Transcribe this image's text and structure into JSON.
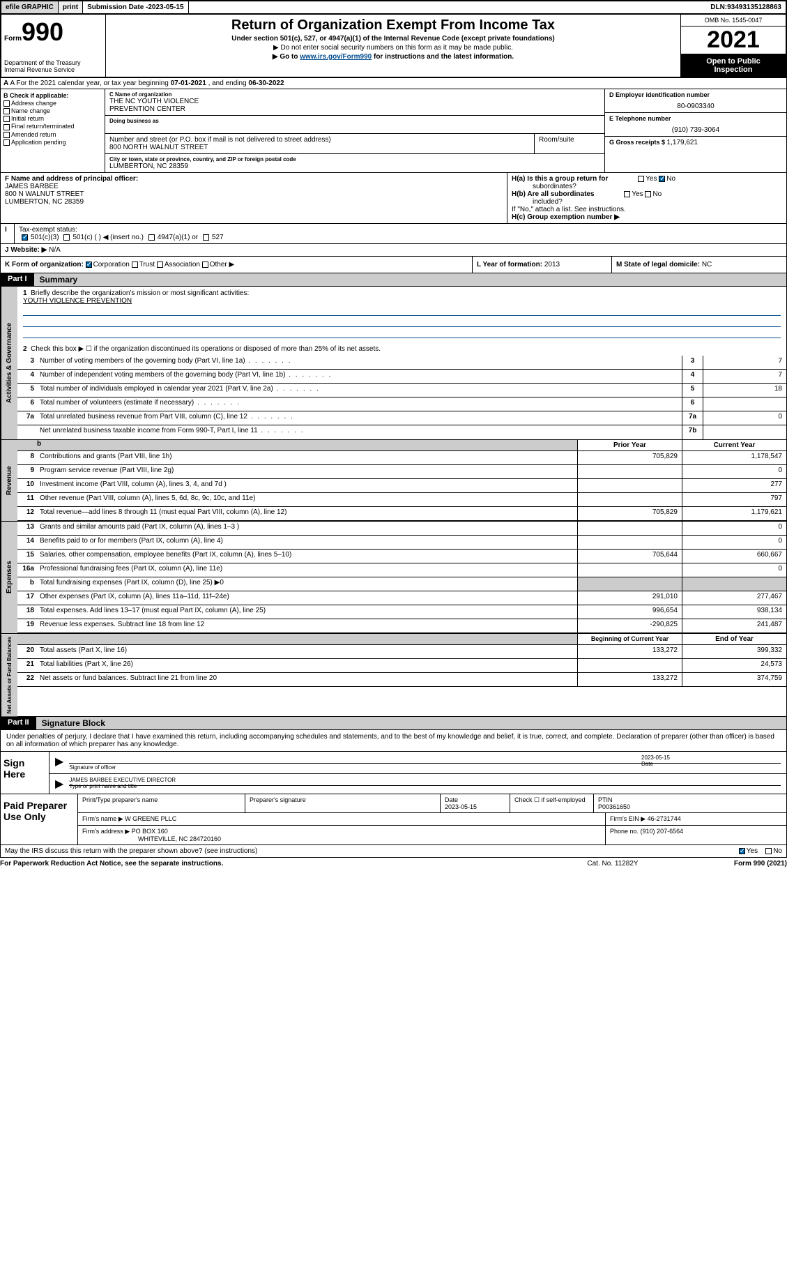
{
  "topbar": {
    "efile": "efile GRAPHIC",
    "print": "print",
    "submission_label": "Submission Date - ",
    "submission_date": "2023-05-15",
    "dln_label": "DLN: ",
    "dln": "93493135128863"
  },
  "header": {
    "form_word": "Form",
    "form_num": "990",
    "dept": "Department of the Treasury",
    "irs": "Internal Revenue Service",
    "title": "Return of Organization Exempt From Income Tax",
    "sub1": "Under section 501(c), 527, or 4947(a)(1) of the Internal Revenue Code (except private foundations)",
    "sub2_prefix": "▶ Do not enter social security numbers on this form as it may be made public.",
    "sub3_prefix": "▶ Go to ",
    "sub3_link": "www.irs.gov/Form990",
    "sub3_suffix": " for instructions and the latest information.",
    "omb": "OMB No. 1545-0047",
    "year": "2021",
    "open1": "Open to Public",
    "open2": "Inspection"
  },
  "row_a": {
    "prefix": "A For the 2021 calendar year, or tax year beginning ",
    "begin": "07-01-2021",
    "mid": " , and ending ",
    "end": "06-30-2022"
  },
  "col_b": {
    "hdr": "B Check if applicable:",
    "opts": [
      "Address change",
      "Name change",
      "Initial return",
      "Final return/terminated",
      "Amended return",
      "Application pending"
    ]
  },
  "col_c": {
    "name_lbl": "C Name of organization",
    "name": "THE NC YOUTH VIOLENCE",
    "name2": "PREVENTION CENTER",
    "dba_lbl": "Doing business as",
    "street_lbl": "Number and street (or P.O. box if mail is not delivered to street address)",
    "street": "800 NORTH WALNUT STREET",
    "room_lbl": "Room/suite",
    "city_lbl": "City or town, state or province, country, and ZIP or foreign postal code",
    "city": "LUMBERTON, NC  28359"
  },
  "col_de": {
    "d_lbl": "D Employer identification number",
    "ein": "80-0903340",
    "e_lbl": "E Telephone number",
    "phone": "(910) 739-3064",
    "g_lbl": "G Gross receipts $ ",
    "gross": "1,179,621"
  },
  "row_f": {
    "f_lbl": "F Name and address of principal officer:",
    "name": "JAMES BARBEE",
    "addr1": "800 N WALNUT STREET",
    "addr2": "LUMBERTON, NC  28359",
    "ha_lbl": "H(a)  Is this a group return for",
    "ha_sub": "subordinates?",
    "hb_lbl": "H(b)  Are all subordinates",
    "hb_sub": "included?",
    "hb_note": "If \"No,\" attach a list. See instructions.",
    "hc_lbl": "H(c)  Group exemption number ▶",
    "yes": "Yes",
    "no": "No"
  },
  "row_i": {
    "lbl": "Tax-exempt status:",
    "opt1": "501(c)(3)",
    "opt2": "501(c) (   ) ◀ (insert no.)",
    "opt3": "4947(a)(1) or",
    "opt4": "527"
  },
  "row_j": {
    "lbl": "J   Website: ▶",
    "val": "N/A"
  },
  "row_k": {
    "k_lbl": "K Form of organization:",
    "k_opts": [
      "Corporation",
      "Trust",
      "Association",
      "Other ▶"
    ],
    "l_lbl": "L Year of formation: ",
    "l_val": "2013",
    "m_lbl": "M State of legal domicile: ",
    "m_val": "NC"
  },
  "part1": {
    "hdr": "Part I",
    "title": "Summary",
    "tab1": "Activities & Governance",
    "tab2": "Revenue",
    "tab3": "Expenses",
    "tab4": "Net Assets or Fund Balances",
    "q1": "Briefly describe the organization's mission or most significant activities:",
    "mission": "YOUTH VIOLENCE PREVENTION",
    "q2": "Check this box ▶ ☐  if the organization discontinued its operations or disposed of more than 25% of its net assets.",
    "lines_gov": [
      {
        "n": "3",
        "d": "Number of voting members of the governing body (Part VI, line 1a)",
        "c": "3",
        "v": "7"
      },
      {
        "n": "4",
        "d": "Number of independent voting members of the governing body (Part VI, line 1b)",
        "c": "4",
        "v": "7"
      },
      {
        "n": "5",
        "d": "Total number of individuals employed in calendar year 2021 (Part V, line 2a)",
        "c": "5",
        "v": "18"
      },
      {
        "n": "6",
        "d": "Total number of volunteers (estimate if necessary)",
        "c": "6",
        "v": ""
      },
      {
        "n": "7a",
        "d": "Total unrelated business revenue from Part VIII, column (C), line 12",
        "c": "7a",
        "v": "0"
      },
      {
        "n": "",
        "d": "Net unrelated business taxable income from Form 990-T, Part I, line 11",
        "c": "7b",
        "v": ""
      }
    ],
    "col_prior": "Prior Year",
    "col_curr": "Current Year",
    "lines_rev": [
      {
        "n": "8",
        "d": "Contributions and grants (Part VIII, line 1h)",
        "p": "705,829",
        "c": "1,178,547"
      },
      {
        "n": "9",
        "d": "Program service revenue (Part VIII, line 2g)",
        "p": "",
        "c": "0"
      },
      {
        "n": "10",
        "d": "Investment income (Part VIII, column (A), lines 3, 4, and 7d )",
        "p": "",
        "c": "277"
      },
      {
        "n": "11",
        "d": "Other revenue (Part VIII, column (A), lines 5, 6d, 8c, 9c, 10c, and 11e)",
        "p": "",
        "c": "797"
      },
      {
        "n": "12",
        "d": "Total revenue—add lines 8 through 11 (must equal Part VIII, column (A), line 12)",
        "p": "705,829",
        "c": "1,179,621"
      }
    ],
    "lines_exp": [
      {
        "n": "13",
        "d": "Grants and similar amounts paid (Part IX, column (A), lines 1–3 )",
        "p": "",
        "c": "0"
      },
      {
        "n": "14",
        "d": "Benefits paid to or for members (Part IX, column (A), line 4)",
        "p": "",
        "c": "0"
      },
      {
        "n": "15",
        "d": "Salaries, other compensation, employee benefits (Part IX, column (A), lines 5–10)",
        "p": "705,644",
        "c": "660,667"
      },
      {
        "n": "16a",
        "d": "Professional fundraising fees (Part IX, column (A), line 11e)",
        "p": "",
        "c": "0"
      },
      {
        "n": "b",
        "d": "Total fundraising expenses (Part IX, column (D), line 25) ▶0",
        "p": "shade",
        "c": "shade"
      },
      {
        "n": "17",
        "d": "Other expenses (Part IX, column (A), lines 11a–11d, 11f–24e)",
        "p": "291,010",
        "c": "277,467"
      },
      {
        "n": "18",
        "d": "Total expenses. Add lines 13–17 (must equal Part IX, column (A), line 25)",
        "p": "996,654",
        "c": "938,134"
      },
      {
        "n": "19",
        "d": "Revenue less expenses. Subtract line 18 from line 12",
        "p": "-290,825",
        "c": "241,487"
      }
    ],
    "col_begin": "Beginning of Current Year",
    "col_end": "End of Year",
    "lines_net": [
      {
        "n": "20",
        "d": "Total assets (Part X, line 16)",
        "p": "133,272",
        "c": "399,332"
      },
      {
        "n": "21",
        "d": "Total liabilities (Part X, line 26)",
        "p": "",
        "c": "24,573"
      },
      {
        "n": "22",
        "d": "Net assets or fund balances. Subtract line 21 from line 20",
        "p": "133,272",
        "c": "374,759"
      }
    ]
  },
  "part2": {
    "hdr": "Part II",
    "title": "Signature Block",
    "penalty": "Under penalties of perjury, I declare that I have examined this return, including accompanying schedules and statements, and to the best of my knowledge and belief, it is true, correct, and complete. Declaration of preparer (other than officer) is based on all information of which preparer has any knowledge.",
    "sign_here": "Sign Here",
    "sig_officer_lbl": "Signature of officer",
    "sig_date": "2023-05-15",
    "date_lbl": "Date",
    "officer_name": "JAMES BARBEE  EXECUTIVE DIRECTOR",
    "officer_lbl": "Type or print name and title",
    "paid": "Paid Preparer Use Only",
    "pg_hdr": [
      "Print/Type preparer's name",
      "Preparer's signature",
      "Date",
      "",
      "PTIN"
    ],
    "pg_date": "2023-05-15",
    "pg_check_lbl": "Check ☐ if self-employed",
    "ptin": "P00361650",
    "firm_name_lbl": "Firm's name   ▶",
    "firm_name": "W GREENE PLLC",
    "firm_ein_lbl": "Firm's EIN ▶",
    "firm_ein": "46-2731744",
    "firm_addr_lbl": "Firm's address ▶",
    "firm_addr1": "PO BOX 160",
    "firm_addr2": "WHITEVILLE, NC  284720160",
    "firm_phone_lbl": "Phone no. ",
    "firm_phone": "(910) 207-6564",
    "may_irs": "May the IRS discuss this return with the preparer shown above? (see instructions)",
    "yes": "Yes",
    "no": "No"
  },
  "footer": {
    "left": "For Paperwork Reduction Act Notice, see the separate instructions.",
    "mid": "Cat. No. 11282Y",
    "right": "Form 990 (2021)"
  }
}
